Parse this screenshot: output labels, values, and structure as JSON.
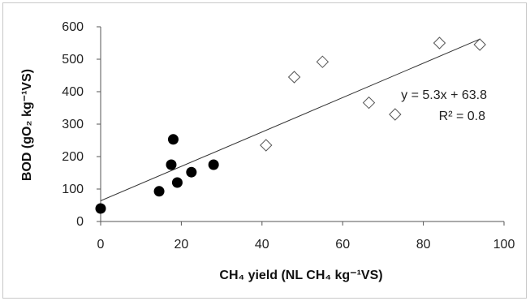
{
  "chart_data": {
    "type": "scatter",
    "xlabel": "CH₄ yield (NL CH₄ kg⁻¹VS)",
    "ylabel": "BOD (gO₂ kg⁻¹VS)",
    "xlim": [
      0,
      100
    ],
    "ylim": [
      0,
      600
    ],
    "x_ticks": [
      "0",
      "20",
      "40",
      "60",
      "80",
      "100"
    ],
    "y_ticks": [
      "0",
      "100",
      "200",
      "300",
      "400",
      "500",
      "600"
    ],
    "grid": false,
    "series": [
      {
        "marker": "filled-circle",
        "color": "#000000",
        "x": [
          0,
          14.5,
          17.5,
          18,
          19,
          22.5,
          28
        ],
        "y": [
          40,
          93,
          175,
          253,
          120,
          152,
          175
        ]
      },
      {
        "marker": "open-diamond",
        "color": "#555555",
        "x": [
          41,
          48,
          55,
          66.5,
          73,
          84,
          94
        ],
        "y": [
          235,
          445,
          492,
          366,
          330,
          550,
          545
        ]
      }
    ],
    "trendline": {
      "slope": 5.3,
      "intercept": 63.8,
      "x_range": [
        0,
        94
      ]
    },
    "annotations": [
      "y = 5.3x + 63.8",
      "R² = 0.8"
    ]
  }
}
